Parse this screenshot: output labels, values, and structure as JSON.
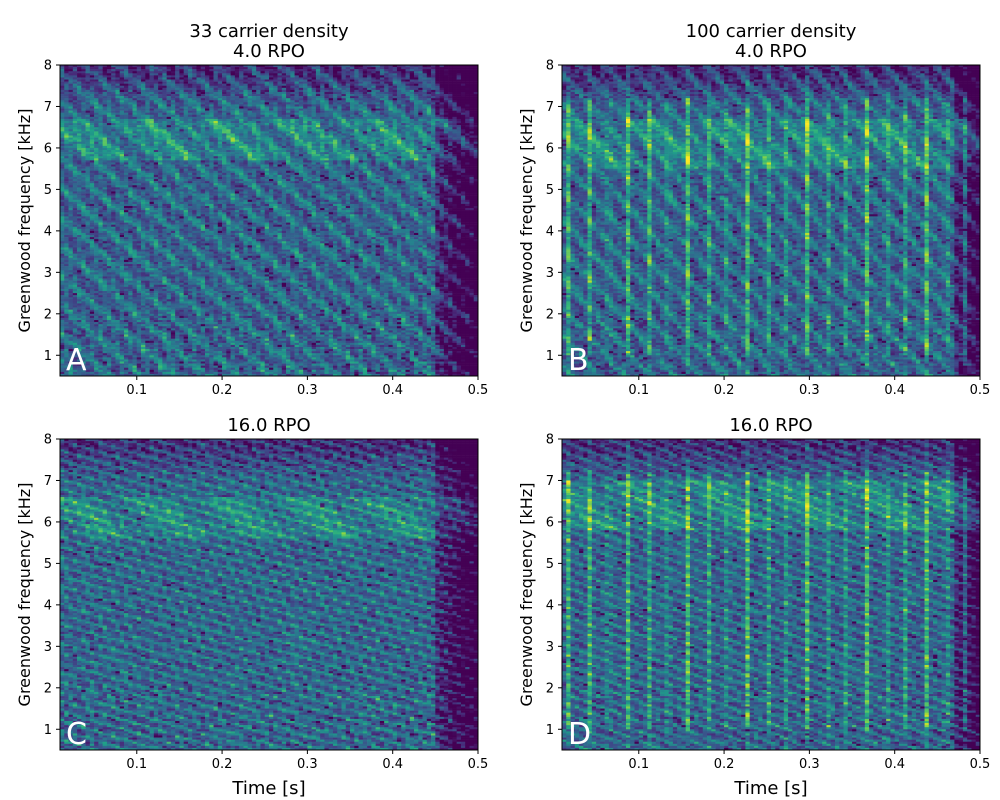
{
  "colors": {
    "colormap": "viridis",
    "background": "#440154",
    "text": "#000000",
    "panel_letter": "#ffffff"
  },
  "chart_data": [
    {
      "type": "heatmap",
      "panel": "A",
      "title_lines": [
        "33 carrier density",
        "4.0 RPO"
      ],
      "xlabel": "",
      "ylabel": "Greenwood frequency [kHz]",
      "xlim": [
        0.01,
        0.5
      ],
      "ylim": [
        0.5,
        8
      ],
      "xticks": [
        0.1,
        0.2,
        0.3,
        0.4,
        0.5
      ],
      "xtick_labels": [
        "0.1",
        "0.2",
        "0.3",
        "0.4",
        "0.5"
      ],
      "yticks": [
        1,
        2,
        3,
        4,
        5,
        6,
        7,
        8
      ],
      "ytick_labels": [
        "1",
        "2",
        "3",
        "4",
        "5",
        "6",
        "7",
        "8"
      ],
      "value_range": [
        0,
        1
      ],
      "pattern": {
        "carrier_density": 33,
        "rpo": 4.0,
        "ripple_rows": 10,
        "high_band": [
          5.7,
          6.7
        ],
        "offset_end": 0.45
      }
    },
    {
      "type": "heatmap",
      "panel": "B",
      "title_lines": [
        "100 carrier density",
        "4.0 RPO"
      ],
      "xlabel": "",
      "ylabel": "Greenwood frequency [kHz]",
      "xlim": [
        0.01,
        0.5
      ],
      "ylim": [
        0.5,
        8
      ],
      "xticks": [
        0.1,
        0.2,
        0.3,
        0.4,
        0.5
      ],
      "xtick_labels": [
        "0.1",
        "0.2",
        "0.3",
        "0.4",
        "0.5"
      ],
      "yticks": [
        1,
        2,
        3,
        4,
        5,
        6,
        7,
        8
      ],
      "ytick_labels": [
        "1",
        "2",
        "3",
        "4",
        "5",
        "6",
        "7",
        "8"
      ],
      "value_range": [
        0,
        1
      ],
      "pattern": {
        "carrier_density": 100,
        "rpo": 4.0,
        "ripple_rows": 10,
        "high_band": [
          5.5,
          6.7
        ],
        "offset_end": 0.47
      }
    },
    {
      "type": "heatmap",
      "panel": "C",
      "title_lines": [
        "16.0 RPO"
      ],
      "xlabel": "Time [s]",
      "ylabel": "Greenwood frequency [kHz]",
      "xlim": [
        0.01,
        0.5
      ],
      "ylim": [
        0.5,
        8
      ],
      "xticks": [
        0.1,
        0.2,
        0.3,
        0.4,
        0.5
      ],
      "xtick_labels": [
        "0.1",
        "0.2",
        "0.3",
        "0.4",
        "0.5"
      ],
      "yticks": [
        1,
        2,
        3,
        4,
        5,
        6,
        7,
        8
      ],
      "ytick_labels": [
        "1",
        "2",
        "3",
        "4",
        "5",
        "6",
        "7",
        "8"
      ],
      "value_range": [
        0,
        1
      ],
      "pattern": {
        "carrier_density": 33,
        "rpo": 16.0,
        "ripple_rows": 30,
        "high_band": [
          5.6,
          6.6
        ],
        "offset_end": 0.45
      }
    },
    {
      "type": "heatmap",
      "panel": "D",
      "title_lines": [
        "16.0 RPO"
      ],
      "xlabel": "Time [s]",
      "ylabel": "Greenwood frequency [kHz]",
      "xlim": [
        0.01,
        0.5
      ],
      "ylim": [
        0.5,
        8
      ],
      "xticks": [
        0.1,
        0.2,
        0.3,
        0.4,
        0.5
      ],
      "xtick_labels": [
        "0.1",
        "0.2",
        "0.3",
        "0.4",
        "0.5"
      ],
      "yticks": [
        1,
        2,
        3,
        4,
        5,
        6,
        7,
        8
      ],
      "ytick_labels": [
        "1",
        "2",
        "3",
        "4",
        "5",
        "6",
        "7",
        "8"
      ],
      "value_range": [
        0,
        1
      ],
      "pattern": {
        "carrier_density": 100,
        "rpo": 16.0,
        "ripple_rows": 30,
        "high_band": [
          5.8,
          7.0
        ],
        "offset_end": 0.47
      }
    }
  ]
}
